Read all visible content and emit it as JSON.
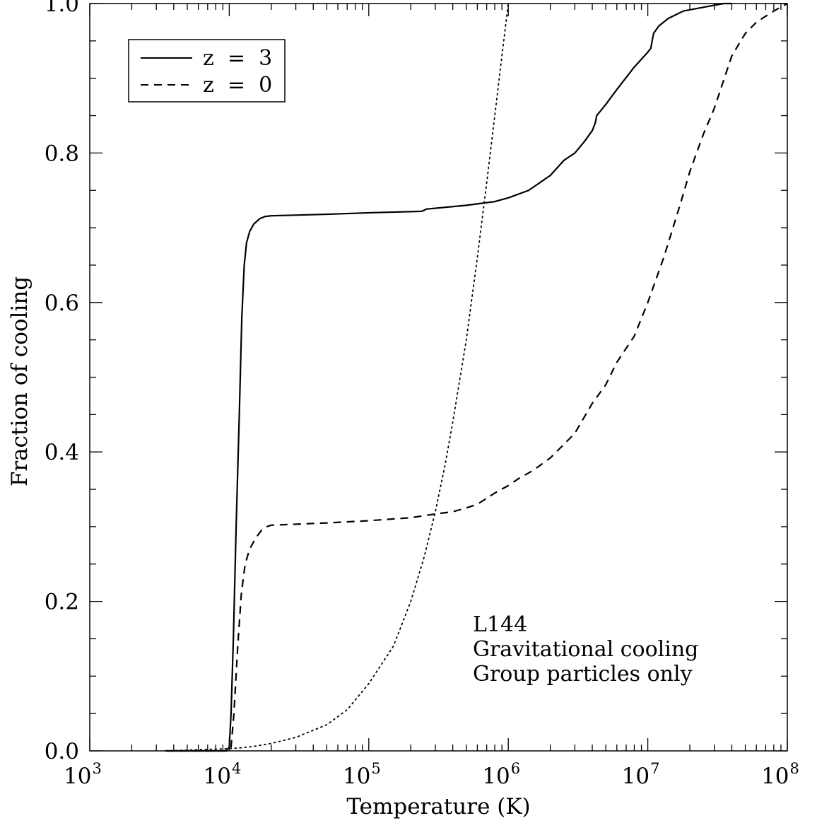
{
  "chart_data": {
    "type": "line",
    "xlabel": "Temperature (K)",
    "ylabel": "Fraction of cooling",
    "xscale": "log",
    "xlim": [
      1000,
      100000000
    ],
    "ylim": [
      0.0,
      1.0
    ],
    "x_ticks": [
      {
        "base": "10",
        "exp": "3"
      },
      {
        "base": "10",
        "exp": "4"
      },
      {
        "base": "10",
        "exp": "5"
      },
      {
        "base": "10",
        "exp": "6"
      },
      {
        "base": "10",
        "exp": "7"
      },
      {
        "base": "10",
        "exp": "8"
      }
    ],
    "y_ticks": [
      "0.0",
      "0.2",
      "0.4",
      "0.6",
      "0.8",
      "1.0"
    ],
    "legend": {
      "placement": "top-left",
      "entries": [
        {
          "label": "z  =  3",
          "style": "solid"
        },
        {
          "label": "z  =  0",
          "style": "dashed"
        }
      ]
    },
    "annotation": [
      "L144",
      "Gravitational cooling",
      "Group particles only"
    ],
    "series": [
      {
        "style": "solid",
        "x": [
          3500,
          9500,
          10000,
          10300,
          10700,
          11200,
          11800,
          12300,
          12800,
          13300,
          14000,
          15000,
          16500,
          18000,
          20000,
          50000,
          100000,
          240000,
          260000,
          500000,
          800000,
          1000000,
          1400000,
          2000000,
          2500000,
          3000000,
          3500000,
          4000000,
          4200000,
          4300000,
          5000000,
          6000000,
          8000000,
          10000000,
          10500000,
          11000000,
          12000000,
          14000000,
          18000000,
          25000000,
          35000000,
          40000000
        ],
        "y": [
          0.0,
          0.0,
          0.005,
          0.05,
          0.15,
          0.3,
          0.45,
          0.58,
          0.65,
          0.68,
          0.695,
          0.705,
          0.712,
          0.715,
          0.716,
          0.718,
          0.72,
          0.722,
          0.725,
          0.73,
          0.735,
          0.74,
          0.75,
          0.77,
          0.79,
          0.8,
          0.815,
          0.83,
          0.84,
          0.85,
          0.865,
          0.885,
          0.915,
          0.935,
          0.94,
          0.96,
          0.97,
          0.98,
          0.99,
          0.995,
          1.0,
          1.0
        ]
      },
      {
        "style": "dashed",
        "x": [
          3500,
          10000,
          10300,
          10800,
          11500,
          12200,
          13000,
          14000,
          15500,
          17000,
          18500,
          20000,
          50000,
          100000,
          200000,
          300000,
          400000,
          500000,
          600000,
          800000,
          1000000,
          1200000,
          1500000,
          2000000,
          2500000,
          3000000,
          4000000,
          5000000,
          6000000,
          8000000,
          10000000,
          13000000,
          17000000,
          20000000,
          25000000,
          30000000,
          40000000,
          50000000,
          60000000,
          80000000,
          100000000
        ],
        "y": [
          0.0,
          0.0,
          0.005,
          0.05,
          0.14,
          0.21,
          0.25,
          0.27,
          0.285,
          0.295,
          0.3,
          0.302,
          0.305,
          0.308,
          0.312,
          0.317,
          0.32,
          0.325,
          0.33,
          0.345,
          0.355,
          0.365,
          0.375,
          0.392,
          0.41,
          0.425,
          0.465,
          0.49,
          0.52,
          0.555,
          0.6,
          0.66,
          0.73,
          0.775,
          0.825,
          0.86,
          0.93,
          0.96,
          0.975,
          0.99,
          1.0
        ]
      },
      {
        "style": "dotted",
        "x": [
          3500,
          10000,
          12000,
          15000,
          20000,
          30000,
          50000,
          70000,
          100000,
          150000,
          200000,
          250000,
          300000,
          350000,
          400000,
          500000,
          600000,
          700000,
          800000,
          900000,
          1000000
        ],
        "y": [
          0.0,
          0.003,
          0.004,
          0.006,
          0.01,
          0.018,
          0.035,
          0.055,
          0.09,
          0.14,
          0.2,
          0.26,
          0.32,
          0.38,
          0.44,
          0.55,
          0.66,
          0.76,
          0.85,
          0.93,
          1.0
        ]
      }
    ]
  }
}
